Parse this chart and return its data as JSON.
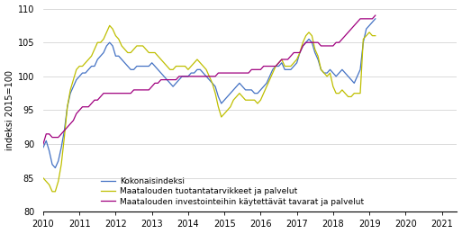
{
  "title": "",
  "ylabel": "indeksi 2015=100",
  "xlim": [
    2010.0,
    2021.42
  ],
  "ylim": [
    80,
    110
  ],
  "yticks": [
    80,
    85,
    90,
    95,
    100,
    105,
    110
  ],
  "xticks": [
    2010,
    2011,
    2012,
    2013,
    2014,
    2015,
    2016,
    2017,
    2018,
    2019,
    2020,
    2021
  ],
  "color_total": "#4472C4",
  "color_inputs": "#BFBF00",
  "color_invest": "#A0007F",
  "legend_labels": [
    "Kokonaisindeksi",
    "Maatalouden tuotantatarvikkeet ja palvelut",
    "Maatalouden investointeihin käytettävät tavarat ja palvelut"
  ],
  "total_index": [
    89.5,
    90.5,
    89.0,
    87.0,
    86.5,
    87.5,
    89.5,
    92.0,
    95.5,
    97.5,
    98.5,
    99.5,
    100.0,
    100.5,
    100.5,
    101.0,
    101.5,
    101.5,
    102.5,
    103.0,
    103.5,
    104.5,
    105.0,
    104.5,
    103.0,
    103.0,
    102.5,
    102.0,
    101.5,
    101.0,
    101.0,
    101.5,
    101.5,
    101.5,
    101.5,
    101.5,
    102.0,
    101.5,
    101.0,
    100.5,
    100.0,
    99.5,
    99.0,
    98.5,
    99.0,
    99.5,
    100.0,
    100.0,
    100.0,
    100.5,
    100.5,
    101.0,
    101.0,
    100.5,
    100.0,
    99.5,
    99.0,
    98.5,
    97.0,
    96.0,
    96.5,
    97.0,
    97.5,
    98.0,
    98.5,
    99.0,
    98.5,
    98.0,
    98.0,
    98.0,
    97.5,
    97.5,
    98.0,
    98.5,
    99.0,
    100.0,
    101.0,
    101.5,
    101.5,
    102.0,
    101.0,
    101.0,
    101.0,
    101.5,
    102.0,
    103.5,
    104.5,
    105.0,
    105.5,
    105.0,
    103.5,
    102.5,
    101.0,
    100.5,
    100.5,
    101.0,
    100.5,
    100.0,
    100.5,
    101.0,
    100.5,
    100.0,
    99.5,
    99.0,
    100.0,
    101.0,
    105.0,
    107.0,
    107.5,
    108.0,
    108.5
  ],
  "inputs_index": [
    85.0,
    84.5,
    84.0,
    83.0,
    83.0,
    84.5,
    87.0,
    91.0,
    95.5,
    98.0,
    99.5,
    101.0,
    101.5,
    101.5,
    102.0,
    102.5,
    103.0,
    104.0,
    105.0,
    105.0,
    105.5,
    106.5,
    107.5,
    107.0,
    106.0,
    105.5,
    104.5,
    104.0,
    103.5,
    103.5,
    104.0,
    104.5,
    104.5,
    104.5,
    104.0,
    103.5,
    103.5,
    103.5,
    103.0,
    102.5,
    102.0,
    101.5,
    101.0,
    101.0,
    101.5,
    101.5,
    101.5,
    101.5,
    101.0,
    101.5,
    102.0,
    102.5,
    102.0,
    101.5,
    101.0,
    100.0,
    99.0,
    97.5,
    95.5,
    94.0,
    94.5,
    95.0,
    95.5,
    96.5,
    97.0,
    97.5,
    97.0,
    96.5,
    96.5,
    96.5,
    96.5,
    96.0,
    96.5,
    97.5,
    98.5,
    99.5,
    100.5,
    101.5,
    102.0,
    102.5,
    101.5,
    101.5,
    101.5,
    102.0,
    102.5,
    103.5,
    105.0,
    106.0,
    106.5,
    106.0,
    104.0,
    103.0,
    101.0,
    100.5,
    100.0,
    100.5,
    98.5,
    97.5,
    97.5,
    98.0,
    97.5,
    97.0,
    97.0,
    97.5,
    97.5,
    97.5,
    105.5,
    106.0,
    106.5,
    106.0,
    106.0
  ],
  "invest_index": [
    90.0,
    91.5,
    91.5,
    91.0,
    91.0,
    91.0,
    91.5,
    92.0,
    92.5,
    93.0,
    93.5,
    94.5,
    95.0,
    95.5,
    95.5,
    95.5,
    96.0,
    96.5,
    96.5,
    97.0,
    97.5,
    97.5,
    97.5,
    97.5,
    97.5,
    97.5,
    97.5,
    97.5,
    97.5,
    97.5,
    98.0,
    98.0,
    98.0,
    98.0,
    98.0,
    98.0,
    98.5,
    99.0,
    99.0,
    99.5,
    99.5,
    99.5,
    99.5,
    99.5,
    99.5,
    100.0,
    100.0,
    100.0,
    100.0,
    100.0,
    100.0,
    100.0,
    100.0,
    100.0,
    100.0,
    100.0,
    100.0,
    100.0,
    100.5,
    100.5,
    100.5,
    100.5,
    100.5,
    100.5,
    100.5,
    100.5,
    100.5,
    100.5,
    100.5,
    101.0,
    101.0,
    101.0,
    101.0,
    101.5,
    101.5,
    101.5,
    101.5,
    101.5,
    102.0,
    102.5,
    102.5,
    102.5,
    103.0,
    103.5,
    103.5,
    103.5,
    104.5,
    105.0,
    105.0,
    105.0,
    105.0,
    105.0,
    104.5,
    104.5,
    104.5,
    104.5,
    104.5,
    105.0,
    105.0,
    105.5,
    106.0,
    106.5,
    107.0,
    107.5,
    108.0,
    108.5,
    108.5,
    108.5,
    108.5,
    108.5,
    109.0
  ]
}
